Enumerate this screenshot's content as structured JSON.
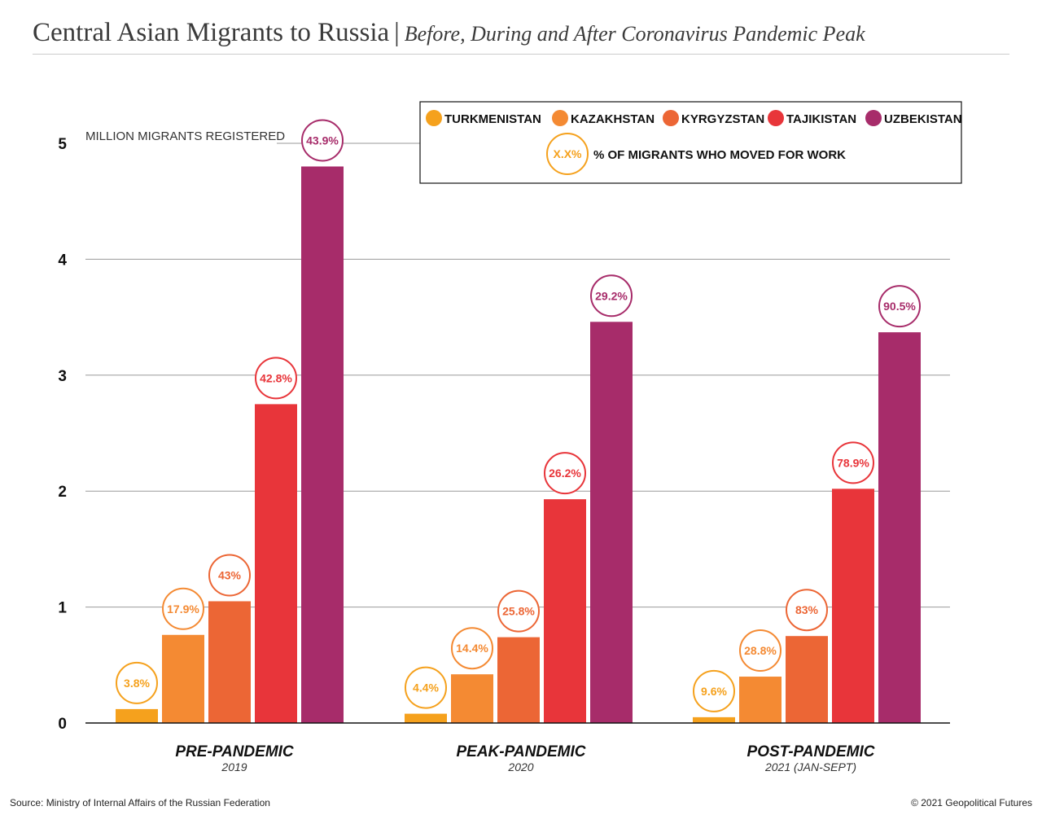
{
  "header": {
    "title": "Central Asian Migrants to Russia",
    "separator": "|",
    "subtitle": "Before, During and After Coronavirus Pandemic Peak"
  },
  "footer": {
    "source": "Source: Ministry of Internal Affairs of the Russian Federation",
    "copyright": "© 2021 Geopolitical Futures"
  },
  "chart_data": {
    "type": "bar",
    "ylabel": "MILLION MIGRANTS REGISTERED",
    "ylim": [
      0,
      5
    ],
    "yticks": [
      "0",
      "1",
      "2",
      "3",
      "4",
      "5"
    ],
    "grid": true,
    "legend_position": "top-right",
    "categories": [
      {
        "label": "PRE-PANDEMIC",
        "sublabel": "2019"
      },
      {
        "label": "PEAK-PANDEMIC",
        "sublabel": "2020"
      },
      {
        "label": "POST-PANDEMIC",
        "sublabel": "2021 (JAN-SEPT)"
      }
    ],
    "series": [
      {
        "name": "TURKMENISTAN",
        "color": "#f5a11d",
        "values": [
          0.12,
          0.08,
          0.05
        ],
        "labels": [
          "3.8%",
          "4.4%",
          "9.6%"
        ]
      },
      {
        "name": "KAZAKHSTAN",
        "color": "#f48a33",
        "values": [
          0.76,
          0.42,
          0.4
        ],
        "labels": [
          "17.9%",
          "14.4%",
          "28.8%"
        ]
      },
      {
        "name": "KYRGYZSTAN",
        "color": "#ec6635",
        "values": [
          1.05,
          0.74,
          0.75
        ],
        "labels": [
          "43%",
          "25.8%",
          "83%"
        ]
      },
      {
        "name": "TAJIKISTAN",
        "color": "#e8353a",
        "values": [
          2.75,
          1.93,
          2.02
        ],
        "labels": [
          "42.8%",
          "26.2%",
          "78.9%"
        ]
      },
      {
        "name": "UZBEKISTAN",
        "color": "#a72c6a",
        "values": [
          4.8,
          3.46,
          3.37
        ],
        "labels": [
          "43.9%",
          "29.2%",
          "90.5%"
        ]
      }
    ],
    "legend_note": {
      "marker": "X.X%",
      "text": "% OF MIGRANTS WHO MOVED FOR WORK",
      "color": "#f5a11d"
    }
  }
}
